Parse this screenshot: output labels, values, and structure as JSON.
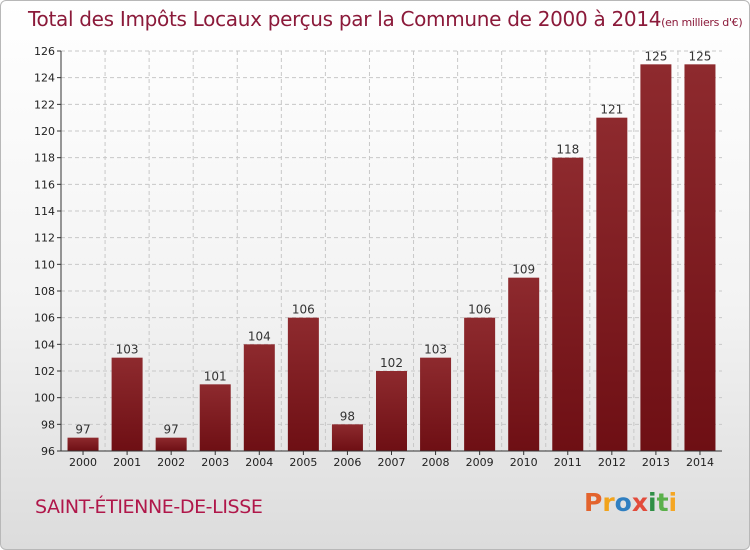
{
  "header": {
    "title": "Total des Impôts Locaux perçus par la Commune de 2000 à 2014",
    "unit": "(en milliers d'€)"
  },
  "footer": {
    "commune": "SAINT-ÉTIENNE-DE-LISSE",
    "brand_letters": [
      "P",
      "r",
      "o",
      "x",
      "i",
      "t",
      "i"
    ],
    "brand_colors": [
      "#e3632d",
      "#f2a31b",
      "#2f7fc1",
      "#e24b3b",
      "#2f8f46",
      "#5ab04a",
      "#f5a623"
    ]
  },
  "colors": {
    "bar": "#6e0f14",
    "bar_light": "#8e2a2e",
    "title": "#8b1a3a",
    "grid": "#c8c8c8"
  },
  "chart_data": {
    "type": "bar",
    "title": "Total des Impôts Locaux perçus par la Commune de 2000 à 2014",
    "ylabel": "en milliers d'€",
    "xlabel": "",
    "categories": [
      "2000",
      "2001",
      "2002",
      "2003",
      "2004",
      "2005",
      "2006",
      "2007",
      "2008",
      "2009",
      "2010",
      "2011",
      "2012",
      "2013",
      "2014"
    ],
    "values": [
      97,
      103,
      97,
      101,
      104,
      106,
      98,
      102,
      103,
      106,
      109,
      118,
      121,
      125,
      125
    ],
    "ylim": [
      96,
      126
    ],
    "yticks": [
      96,
      98,
      100,
      102,
      104,
      106,
      108,
      110,
      112,
      114,
      116,
      118,
      120,
      122,
      124,
      126
    ],
    "grid": true
  }
}
